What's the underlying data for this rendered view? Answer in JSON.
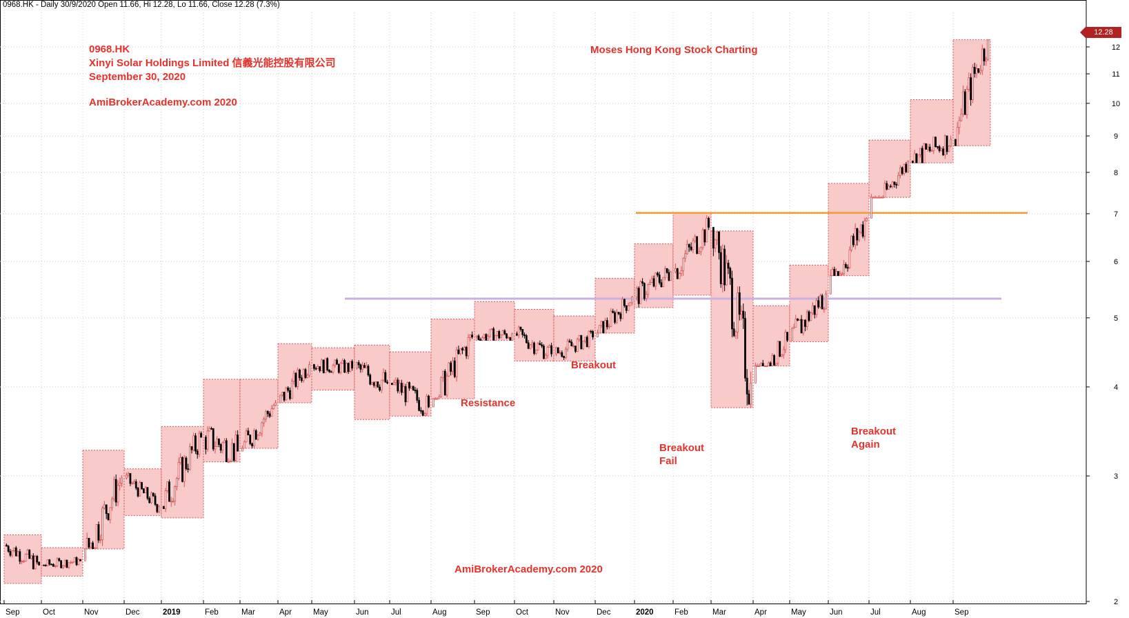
{
  "header": "0968.HK - Daily 30/9/2020 Open 11.66, Hi 12.28, Lo 11.66, Close 12.28 (7.3%)",
  "info": {
    "ticker": "0968.HK",
    "company": "Xinyi Solar Holdings Limited 信義光能控股有限公司",
    "date": "September 30, 2020",
    "site": "AmiBrokerAcademy.com  2020"
  },
  "watermark_top": "Moses Hong Kong Stock Charting",
  "watermark_bottom": "AmiBrokerAcademy.com  2020",
  "annotations": {
    "resistance": "Resistance",
    "breakout": "Breakout",
    "breakout_fail_1": "Breakout",
    "breakout_fail_2": "Fail",
    "breakout_again_1": "Breakout",
    "breakout_again_2": "Again"
  },
  "last_price_label": "12.28",
  "colors": {
    "annotation": "#e8312b",
    "box_fill": "#f8c4c4",
    "box_edge": "#e05050",
    "resistance_line": "#c8b0e0",
    "high_line": "#f59a30",
    "candle_up": "#e05050",
    "candle_down": "#000000",
    "grid": "#c8c8c8"
  },
  "chart_data": {
    "type": "candlestick",
    "title": "0968.HK - Daily 30/9/2020",
    "y_scale": "log",
    "ylim": [
      2.1,
      12.5
    ],
    "y_ticks": [
      2,
      3,
      4,
      5,
      6,
      7,
      8,
      9,
      10,
      11,
      12
    ],
    "x_ticks": [
      "Sep",
      "Oct",
      "Nov",
      "Dec",
      "2019",
      "Feb",
      "Mar",
      "Apr",
      "May",
      "Jun",
      "Jul",
      "Aug",
      "Sep",
      "Oct",
      "Nov",
      "Dec",
      "2020",
      "Feb",
      "Mar",
      "Apr",
      "May",
      "Jun",
      "Jul",
      "Aug",
      "Sep"
    ],
    "grid": "vertical at month starts, horizontal at price ticks",
    "monthly_ranges": [
      {
        "month": "Sep 2018",
        "high": 2.48,
        "low": 2.12
      },
      {
        "month": "Oct 2018",
        "high": 2.38,
        "low": 2.17
      },
      {
        "month": "Nov 2018",
        "high": 3.26,
        "low": 2.37
      },
      {
        "month": "Dec 2018",
        "high": 3.07,
        "low": 2.64
      },
      {
        "month": "Jan 2019",
        "high": 3.52,
        "low": 2.62
      },
      {
        "month": "Feb 2019",
        "high": 4.1,
        "low": 3.14
      },
      {
        "month": "Mar 2019",
        "high": 4.1,
        "low": 3.28
      },
      {
        "month": "Apr 2019",
        "high": 4.6,
        "low": 3.8
      },
      {
        "month": "May 2019",
        "high": 4.54,
        "low": 3.96
      },
      {
        "month": "Jun 2019",
        "high": 4.58,
        "low": 3.6
      },
      {
        "month": "Jul 2019",
        "high": 4.48,
        "low": 3.64
      },
      {
        "month": "Aug 2019",
        "high": 4.98,
        "low": 3.85
      },
      {
        "month": "Sep 2019",
        "high": 5.27,
        "low": 4.65
      },
      {
        "month": "Oct 2019",
        "high": 5.14,
        "low": 4.35
      },
      {
        "month": "Nov 2019",
        "high": 5.03,
        "low": 4.35
      },
      {
        "month": "Dec 2019",
        "high": 5.68,
        "low": 4.76
      },
      {
        "month": "Jan 2020",
        "high": 6.35,
        "low": 5.17
      },
      {
        "month": "Feb 2020",
        "high": 7.02,
        "low": 5.38
      },
      {
        "month": "Mar 2020",
        "high": 6.62,
        "low": 3.74
      },
      {
        "month": "Apr 2020",
        "high": 5.2,
        "low": 4.28
      },
      {
        "month": "May 2020",
        "high": 5.93,
        "low": 4.63
      },
      {
        "month": "Jun 2020",
        "high": 7.72,
        "low": 5.73
      },
      {
        "month": "Jul 2020",
        "high": 8.88,
        "low": 7.38
      },
      {
        "month": "Aug 2020",
        "high": 10.12,
        "low": 8.25
      },
      {
        "month": "Sep 2020",
        "high": 12.28,
        "low": 8.72
      }
    ],
    "monthly_close": [
      2.25,
      2.28,
      2.98,
      2.72,
      3.4,
      3.25,
      3.8,
      4.3,
      4.25,
      4.05,
      3.75,
      4.7,
      4.75,
      4.45,
      4.7,
      5.35,
      5.8,
      6.7,
      4.05,
      4.65,
      5.4,
      6.9,
      8.3,
      8.9,
      12.28
    ],
    "horizontal_lines": [
      {
        "name": "resistance",
        "value": 5.32,
        "from": "Jun 2019",
        "to": "Sep 2020"
      },
      {
        "name": "Feb 2020 high",
        "value": 7.02,
        "from": "Jan 2020",
        "to": "Sep 2020"
      }
    ],
    "last_close": 12.28
  }
}
